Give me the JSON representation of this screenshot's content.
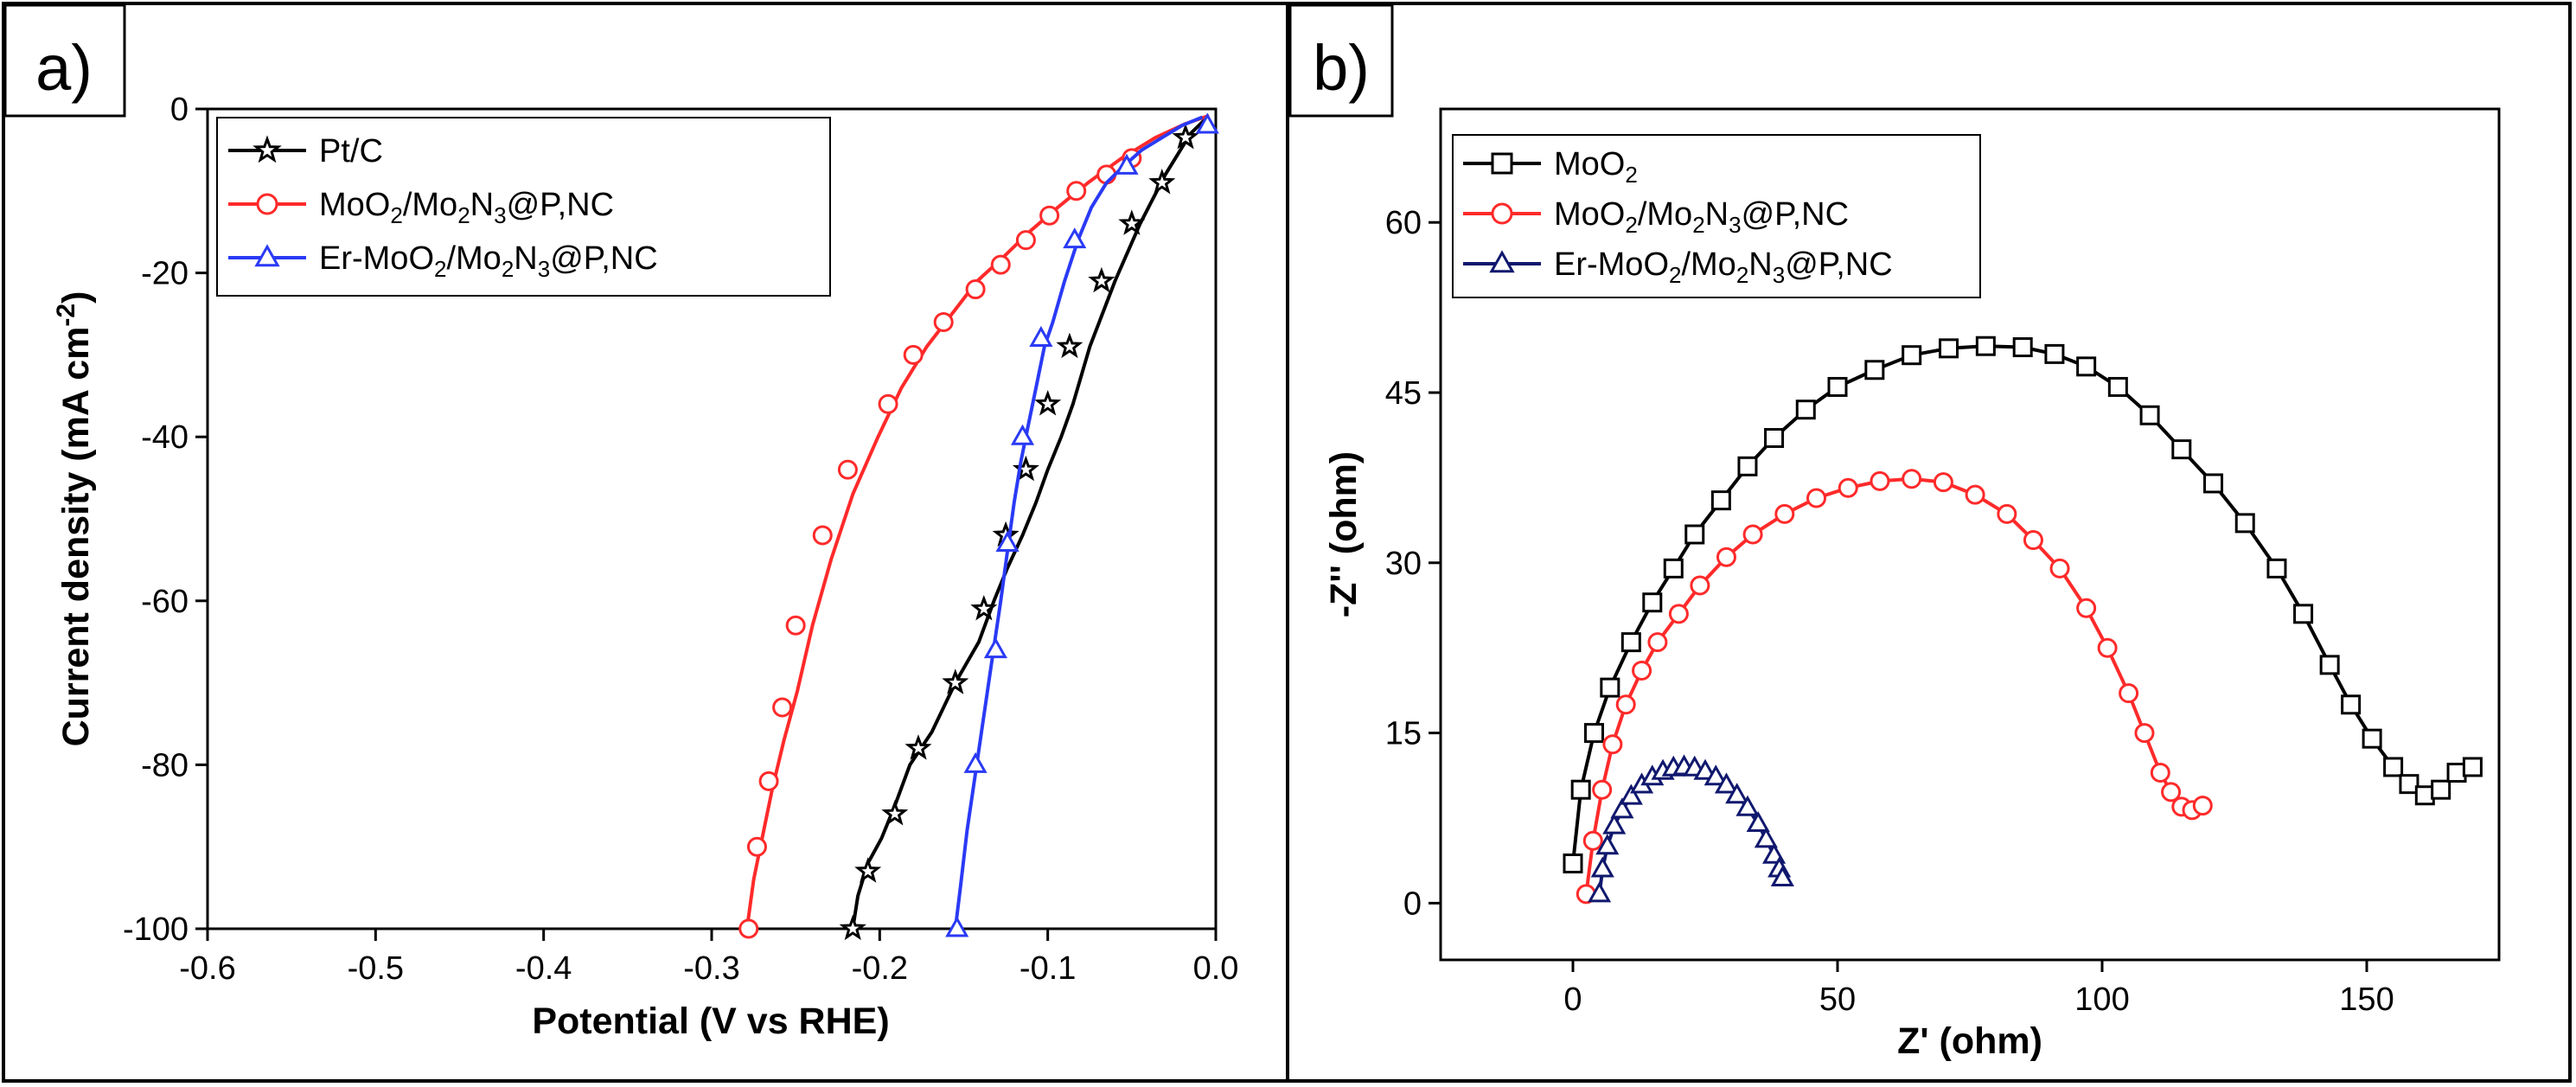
{
  "chart_data": [
    {
      "type": "line",
      "panel_label": "a)",
      "title": "",
      "xlabel": "Potential (V vs RHE)",
      "ylabel": "Current density (mA cm",
      "ylabel_sup": "-2",
      "ylabel_end": ")",
      "xlim": [
        -0.6,
        0.0
      ],
      "ylim": [
        -100,
        0
      ],
      "xticks": [
        -0.6,
        -0.5,
        -0.4,
        -0.3,
        -0.2,
        -0.1,
        0.0
      ],
      "xtick_labels": [
        "-0.6",
        "-0.5",
        "-0.4",
        "-0.3",
        "-0.2",
        "-0.1",
        "0.0"
      ],
      "yticks": [
        -100,
        -80,
        -60,
        -40,
        -20,
        0
      ],
      "ytick_labels": [
        "-100",
        "-80",
        "-60",
        "-40",
        "-20",
        "0"
      ],
      "legend_position": "top-left",
      "series": [
        {
          "name": "Pt/C",
          "color": "#000000",
          "marker": "star",
          "legend_parts": [
            [
              "Pt/C",
              ""
            ]
          ],
          "x": [
            -0.216,
            -0.213,
            -0.207,
            -0.199,
            -0.191,
            -0.182,
            -0.169,
            -0.155,
            -0.141,
            -0.132,
            -0.124,
            -0.115,
            -0.107,
            -0.1,
            -0.092,
            -0.085,
            -0.075,
            -0.06,
            -0.045,
            -0.03,
            -0.015,
            -0.005
          ],
          "y": [
            -100,
            -96,
            -92,
            -89,
            -85,
            -80,
            -76,
            -70,
            -65,
            -60,
            -56,
            -52,
            -48,
            -44,
            -40,
            -36,
            -29,
            -21,
            -14,
            -8,
            -3,
            -1
          ],
          "markers_x": [
            -0.216,
            -0.207,
            -0.191,
            -0.177,
            -0.155,
            -0.138,
            -0.125,
            -0.113,
            -0.1,
            -0.087,
            -0.068,
            -0.05,
            -0.032,
            -0.018
          ],
          "markers_y": [
            -100,
            -93,
            -86,
            -78,
            -70,
            -61,
            -52,
            -44,
            -36,
            -29,
            -21,
            -14,
            -9,
            -3.5
          ]
        },
        {
          "name": "MoO2/Mo2N3@P,NC",
          "color": "#ff2a2a",
          "marker": "circle",
          "legend_parts": [
            [
              "MoO",
              ""
            ],
            [
              "2",
              "sub"
            ],
            [
              "/Mo",
              ""
            ],
            [
              "2",
              "sub"
            ],
            [
              "N",
              ""
            ],
            [
              "3",
              "sub"
            ],
            [
              "@P,NC",
              ""
            ]
          ],
          "x": [
            -0.279,
            -0.275,
            -0.27,
            -0.264,
            -0.257,
            -0.249,
            -0.24,
            -0.229,
            -0.216,
            -0.201,
            -0.187,
            -0.172,
            -0.157,
            -0.142,
            -0.126,
            -0.111,
            -0.094,
            -0.076,
            -0.056,
            -0.036,
            -0.018,
            -0.004
          ],
          "y": [
            -100,
            -94,
            -89,
            -83,
            -77,
            -71,
            -63,
            -55,
            -47,
            -40,
            -34,
            -29,
            -25,
            -21,
            -18,
            -15,
            -12,
            -9,
            -6,
            -3.5,
            -1.8,
            -0.8
          ],
          "markers_x": [
            -0.278,
            -0.273,
            -0.266,
            -0.258,
            -0.25,
            -0.234,
            -0.219,
            -0.195,
            -0.18,
            -0.162,
            -0.143,
            -0.128,
            -0.113,
            -0.099,
            -0.083,
            -0.065,
            -0.05
          ],
          "markers_y": [
            -100,
            -90,
            -82,
            -73,
            -63,
            -52,
            -44,
            -36,
            -30,
            -26,
            -22,
            -19,
            -16,
            -13,
            -10,
            -8,
            -6
          ]
        },
        {
          "name": "Er-MoO2/Mo2N3@P,NC",
          "color": "#2a3af5",
          "marker": "triangle",
          "legend_parts": [
            [
              "Er-MoO",
              ""
            ],
            [
              "2",
              "sub"
            ],
            [
              "/Mo",
              ""
            ],
            [
              "2",
              "sub"
            ],
            [
              "N",
              ""
            ],
            [
              "3",
              "sub"
            ],
            [
              "@P,NC",
              ""
            ]
          ],
          "x": [
            -0.155,
            -0.152,
            -0.148,
            -0.143,
            -0.138,
            -0.133,
            -0.128,
            -0.124,
            -0.12,
            -0.116,
            -0.112,
            -0.107,
            -0.102,
            -0.097,
            -0.09,
            -0.082,
            -0.074,
            -0.065,
            -0.055,
            -0.044,
            -0.032,
            -0.02,
            -0.008
          ],
          "y": [
            -100,
            -95,
            -88,
            -81,
            -74,
            -67,
            -60,
            -54,
            -48,
            -43,
            -39,
            -34,
            -29,
            -26,
            -21,
            -16,
            -12,
            -9,
            -7,
            -5,
            -3.5,
            -2,
            -1
          ],
          "markers_x": [
            -0.154,
            -0.143,
            -0.131,
            -0.124,
            -0.115,
            -0.104,
            -0.084,
            -0.053,
            -0.005
          ],
          "markers_y": [
            -100,
            -80,
            -66,
            -53,
            -40,
            -28,
            -16,
            -7,
            -2
          ]
        }
      ]
    },
    {
      "type": "scatter",
      "panel_label": "b)",
      "title": "",
      "xlabel": "Z' (ohm)",
      "ylabel": "-Z'' (ohm)",
      "xlim": [
        -25,
        175
      ],
      "ylim": [
        -5,
        70
      ],
      "xticks": [
        0,
        50,
        100,
        150
      ],
      "xtick_labels": [
        "0",
        "50",
        "100",
        "150"
      ],
      "yticks": [
        0,
        15,
        30,
        45,
        60
      ],
      "ytick_labels": [
        "0",
        "15",
        "30",
        "45",
        "60"
      ],
      "legend_position": "top-left",
      "series": [
        {
          "name": "MoO2",
          "color": "#000000",
          "marker": "square",
          "legend_parts": [
            [
              "MoO",
              ""
            ],
            [
              "2",
              "sub"
            ]
          ],
          "x": [
            0,
            1.5,
            4,
            7,
            11,
            15,
            19,
            23,
            28,
            33,
            38,
            44,
            50,
            57,
            64,
            71,
            78,
            85,
            91,
            97,
            103,
            109,
            115,
            121,
            127,
            133,
            138,
            143,
            147,
            151,
            155,
            158,
            161,
            164,
            167,
            170
          ],
          "y": [
            3.5,
            10,
            15,
            19,
            23,
            26.5,
            29.5,
            32.5,
            35.5,
            38.5,
            41,
            43.5,
            45.5,
            47,
            48.3,
            48.9,
            49.1,
            49,
            48.4,
            47.3,
            45.5,
            43,
            40,
            37,
            33.5,
            29.5,
            25.5,
            21,
            17.5,
            14.5,
            12,
            10.5,
            9.5,
            10,
            11.5,
            12
          ]
        },
        {
          "name": "MoO2/Mo2N3@P,NC",
          "color": "#ff2a2a",
          "marker": "circle",
          "legend_parts": [
            [
              "MoO",
              ""
            ],
            [
              "2",
              "sub"
            ],
            [
              "/Mo",
              ""
            ],
            [
              "2",
              "sub"
            ],
            [
              "N",
              ""
            ],
            [
              "3",
              "sub"
            ],
            [
              "@P,NC",
              ""
            ]
          ],
          "x": [
            2.5,
            3.8,
            5.5,
            7.5,
            10,
            13,
            16,
            20,
            24,
            29,
            34,
            40,
            46,
            52,
            58,
            64,
            70,
            76,
            82,
            87,
            92,
            97,
            101,
            105,
            108,
            111,
            113,
            115,
            117,
            119
          ],
          "y": [
            0.8,
            5.5,
            10,
            14,
            17.5,
            20.5,
            23,
            25.5,
            28,
            30.5,
            32.5,
            34.3,
            35.7,
            36.6,
            37.2,
            37.4,
            37.1,
            36,
            34.3,
            32,
            29.5,
            26,
            22.5,
            18.5,
            15,
            11.5,
            9.8,
            8.5,
            8.2,
            8.6
          ]
        },
        {
          "name": "Er-MoO2/Mo2N3@P,NC",
          "color": "#10186e",
          "marker": "triangle",
          "legend_parts": [
            [
              "Er-MoO",
              ""
            ],
            [
              "2",
              "sub"
            ],
            [
              "/Mo",
              ""
            ],
            [
              "2",
              "sub"
            ],
            [
              "N",
              ""
            ],
            [
              "3",
              "sub"
            ],
            [
              "@P,NC",
              ""
            ]
          ],
          "x": [
            5,
            5.6,
            6.5,
            7.8,
            9.3,
            11,
            13,
            15,
            17,
            19,
            21,
            23,
            25,
            27,
            29,
            31,
            33,
            35,
            36.5,
            38,
            39,
            39.6
          ],
          "y": [
            0.8,
            3,
            5,
            6.8,
            8.2,
            9.4,
            10.4,
            11.1,
            11.6,
            11.9,
            12,
            11.9,
            11.6,
            11.1,
            10.4,
            9.5,
            8.4,
            7,
            5.6,
            4.2,
            3,
            2.2
          ]
        }
      ]
    }
  ]
}
